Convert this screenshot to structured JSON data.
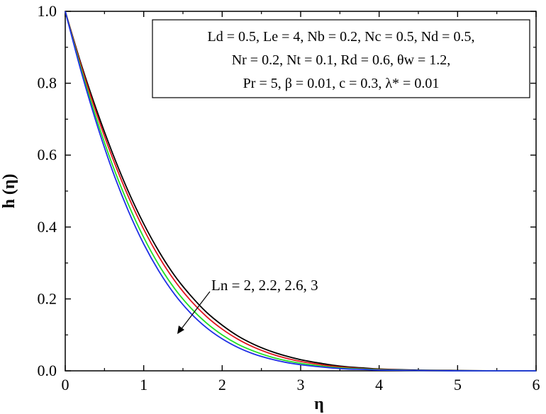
{
  "chart_data": {
    "type": "line",
    "xlabel": "η",
    "ylabel": "h (η)",
    "xlim": [
      0,
      6
    ],
    "ylim": [
      0,
      1
    ],
    "xticks": [
      "0",
      "1",
      "2",
      "3",
      "4",
      "5",
      "6"
    ],
    "yticks": [
      "0.0",
      "0.2",
      "0.4",
      "0.6",
      "0.8",
      "1.0"
    ],
    "parameter_box": {
      "line1": "Ld = 0.5, Le = 4, Nb = 0.2, Nc = 0.5, Nd = 0.5,",
      "line2": "Nr = 0.2, Nt = 0.1, Rd = 0.6, θw = 1.2,",
      "line3": "Pr = 5, β = 0.01, c = 0.3, λ* = 0.01"
    },
    "annotation": "Ln = 2, 2.2, 2.6, 3",
    "grid": false,
    "series": [
      {
        "color": "#000000",
        "x": [
          0,
          0.2,
          0.4,
          0.6,
          0.8,
          1.0,
          1.2,
          1.4,
          1.6,
          1.8,
          2.0,
          2.2,
          2.4,
          2.6,
          2.8,
          3.0,
          3.2,
          3.4,
          3.6,
          3.8,
          4.0,
          4.5,
          5.0,
          5.5,
          6.0
        ],
        "y": [
          1.0,
          0.855,
          0.725,
          0.607,
          0.501,
          0.409,
          0.33,
          0.263,
          0.209,
          0.163,
          0.127,
          0.097,
          0.074,
          0.056,
          0.042,
          0.031,
          0.023,
          0.016,
          0.011,
          0.008,
          0.005,
          0.002,
          0.001,
          0.0,
          0.0
        ]
      },
      {
        "color": "#e0141e",
        "x": [
          0,
          0.2,
          0.4,
          0.6,
          0.8,
          1.0,
          1.2,
          1.4,
          1.6,
          1.8,
          2.0,
          2.2,
          2.4,
          2.6,
          2.8,
          3.0,
          3.2,
          3.4,
          3.6,
          3.8,
          4.0,
          4.5,
          5.0,
          5.5,
          6.0
        ],
        "y": [
          1.0,
          0.85,
          0.715,
          0.594,
          0.487,
          0.394,
          0.315,
          0.249,
          0.195,
          0.151,
          0.116,
          0.088,
          0.066,
          0.049,
          0.036,
          0.026,
          0.019,
          0.013,
          0.009,
          0.006,
          0.004,
          0.001,
          0.0,
          0.0,
          0.0
        ]
      },
      {
        "color": "#22e022",
        "x": [
          0,
          0.2,
          0.4,
          0.6,
          0.8,
          1.0,
          1.2,
          1.4,
          1.6,
          1.8,
          2.0,
          2.2,
          2.4,
          2.6,
          2.8,
          3.0,
          3.2,
          3.4,
          3.6,
          3.8,
          4.0,
          4.5,
          5.0,
          5.5,
          6.0
        ],
        "y": [
          1.0,
          0.842,
          0.7,
          0.574,
          0.465,
          0.371,
          0.292,
          0.227,
          0.175,
          0.133,
          0.1,
          0.074,
          0.055,
          0.04,
          0.029,
          0.021,
          0.015,
          0.01,
          0.007,
          0.005,
          0.003,
          0.001,
          0.0,
          0.0,
          0.0
        ]
      },
      {
        "color": "#1e2ee6",
        "x": [
          0,
          0.2,
          0.4,
          0.6,
          0.8,
          1.0,
          1.2,
          1.4,
          1.6,
          1.8,
          2.0,
          2.2,
          2.4,
          2.6,
          2.8,
          3.0,
          3.2,
          3.4,
          3.6,
          3.8,
          4.0,
          4.5,
          5.0,
          5.5,
          6.0
        ],
        "y": [
          1.0,
          0.835,
          0.688,
          0.558,
          0.447,
          0.353,
          0.275,
          0.211,
          0.16,
          0.12,
          0.089,
          0.065,
          0.047,
          0.034,
          0.024,
          0.017,
          0.012,
          0.008,
          0.005,
          0.004,
          0.002,
          0.001,
          0.0,
          0.0,
          0.0
        ]
      }
    ]
  }
}
